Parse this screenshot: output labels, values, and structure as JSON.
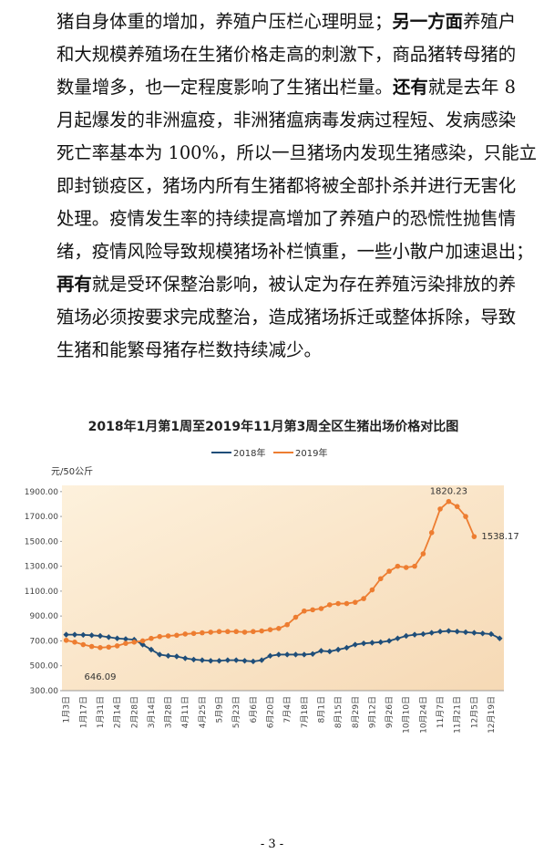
{
  "paragraph": {
    "lines": [
      [
        {
          "text": "猪自身体重的增加，养殖户压栏心理明显；",
          "bold": false
        },
        {
          "text": "另一方面",
          "bold": true
        },
        {
          "text": "养殖户",
          "bold": false
        }
      ],
      [
        {
          "text": "和大规模养殖场在生猪价格走高的刺激下，商品猪转母猪的",
          "bold": false
        }
      ],
      [
        {
          "text": "数量增多，也一定程度影响了生猪出栏量。",
          "bold": false
        },
        {
          "text": "还有",
          "bold": true
        },
        {
          "text": "就是去年 8",
          "bold": false
        }
      ],
      [
        {
          "text": "月起爆发的非洲瘟疫，非洲猪瘟病毒发病过程短、发病感染",
          "bold": false
        }
      ],
      [
        {
          "text": "死亡率基本为 100%，所以一旦猪场内发现生猪感染，只能立",
          "bold": false
        }
      ],
      [
        {
          "text": "即封锁疫区，猪场内所有生猪都将被全部扑杀并进行无害化",
          "bold": false
        }
      ],
      [
        {
          "text": "处理。疫情发生率的持续提高增加了养殖户的恐慌性抛售情",
          "bold": false
        }
      ],
      [
        {
          "text": "绪，疫情风险导致规模猪场补栏慎重，一些小散户加速退出；",
          "bold": false
        }
      ],
      [
        {
          "text": "再有",
          "bold": true
        },
        {
          "text": "就是受环保整治影响，被认定为存在养殖污染排放的养",
          "bold": false
        }
      ],
      [
        {
          "text": "殖场必须按要求完成整治，造成猪场拆迁或整体拆除，导致",
          "bold": false
        }
      ],
      [
        {
          "text": "生猪和能繁母猪存栏数持续减少。",
          "bold": false
        }
      ]
    ]
  },
  "chart_data": {
    "type": "line",
    "title": "2018年1月第1周至2019年11月第3周全区生猪出场价格对比图",
    "y_label": "元/50公斤",
    "categories": [
      "1月3日",
      null,
      "1月17日",
      null,
      "1月31日",
      null,
      "2月14日",
      null,
      "2月28日",
      null,
      "3月14日",
      null,
      "3月28日",
      null,
      "4月11日",
      null,
      "4月25日",
      null,
      "5月9日",
      null,
      "5月23日",
      null,
      "6月6日",
      null,
      "6月20日",
      null,
      "7月4日",
      null,
      "7月18日",
      null,
      "8月1日",
      null,
      "8月15日",
      null,
      "8月29日",
      null,
      "9月12日",
      null,
      "9月26日",
      null,
      "10月10日",
      null,
      "10月24日",
      null,
      "11月7日",
      null,
      "11月21日",
      null,
      "12月5日",
      null,
      "12月19日",
      null
    ],
    "series": [
      {
        "name": "2018年",
        "color": "#1f4e79",
        "marker": "diamond",
        "values": [
          750,
          750,
          748,
          745,
          740,
          730,
          720,
          715,
          710,
          670,
          630,
          590,
          580,
          575,
          560,
          550,
          545,
          540,
          540,
          545,
          545,
          540,
          535,
          545,
          580,
          590,
          590,
          590,
          590,
          595,
          620,
          615,
          630,
          645,
          670,
          680,
          685,
          690,
          700,
          720,
          740,
          750,
          755,
          765,
          775,
          780,
          775,
          770,
          765,
          760,
          755,
          720
        ]
      },
      {
        "name": "2019年",
        "color": "#ed7d31",
        "marker": "circle",
        "values": [
          705,
          690,
          670,
          655,
          646.09,
          650,
          660,
          680,
          690,
          700,
          720,
          735,
          740,
          745,
          755,
          760,
          765,
          770,
          775,
          775,
          775,
          770,
          775,
          780,
          790,
          800,
          830,
          890,
          940,
          950,
          960,
          990,
          1000,
          1000,
          1010,
          1040,
          1110,
          1200,
          1260,
          1300,
          1290,
          1300,
          1400,
          1570,
          1760,
          1820.23,
          1780,
          1700,
          1538.17,
          null,
          null,
          null
        ],
        "value_labels": [
          null,
          null,
          null,
          null,
          "646.09",
          null,
          null,
          null,
          null,
          null,
          null,
          null,
          null,
          null,
          null,
          null,
          null,
          null,
          null,
          null,
          null,
          null,
          null,
          null,
          null,
          null,
          null,
          null,
          null,
          null,
          null,
          null,
          null,
          null,
          null,
          null,
          null,
          null,
          null,
          null,
          null,
          null,
          null,
          null,
          null,
          "1820.23",
          null,
          null,
          "1538.17",
          null,
          null,
          null
        ]
      }
    ],
    "ylim": [
      300,
      1950
    ],
    "yticks": [
      {
        "value": 300,
        "label": "300.00"
      },
      {
        "value": 500,
        "label": "500.00"
      },
      {
        "value": 700,
        "label": "700.00"
      },
      {
        "value": 900,
        "label": "900.00"
      },
      {
        "value": 1100,
        "label": "1100.00"
      },
      {
        "value": 1300,
        "label": "1300.00"
      },
      {
        "value": 1500,
        "label": "1500.00"
      },
      {
        "value": 1700,
        "label": "1700.00"
      },
      {
        "value": 1900,
        "label": "1900.00"
      }
    ],
    "grid": false,
    "legend": "top"
  },
  "footer": {
    "page_number": "- 3 -"
  }
}
